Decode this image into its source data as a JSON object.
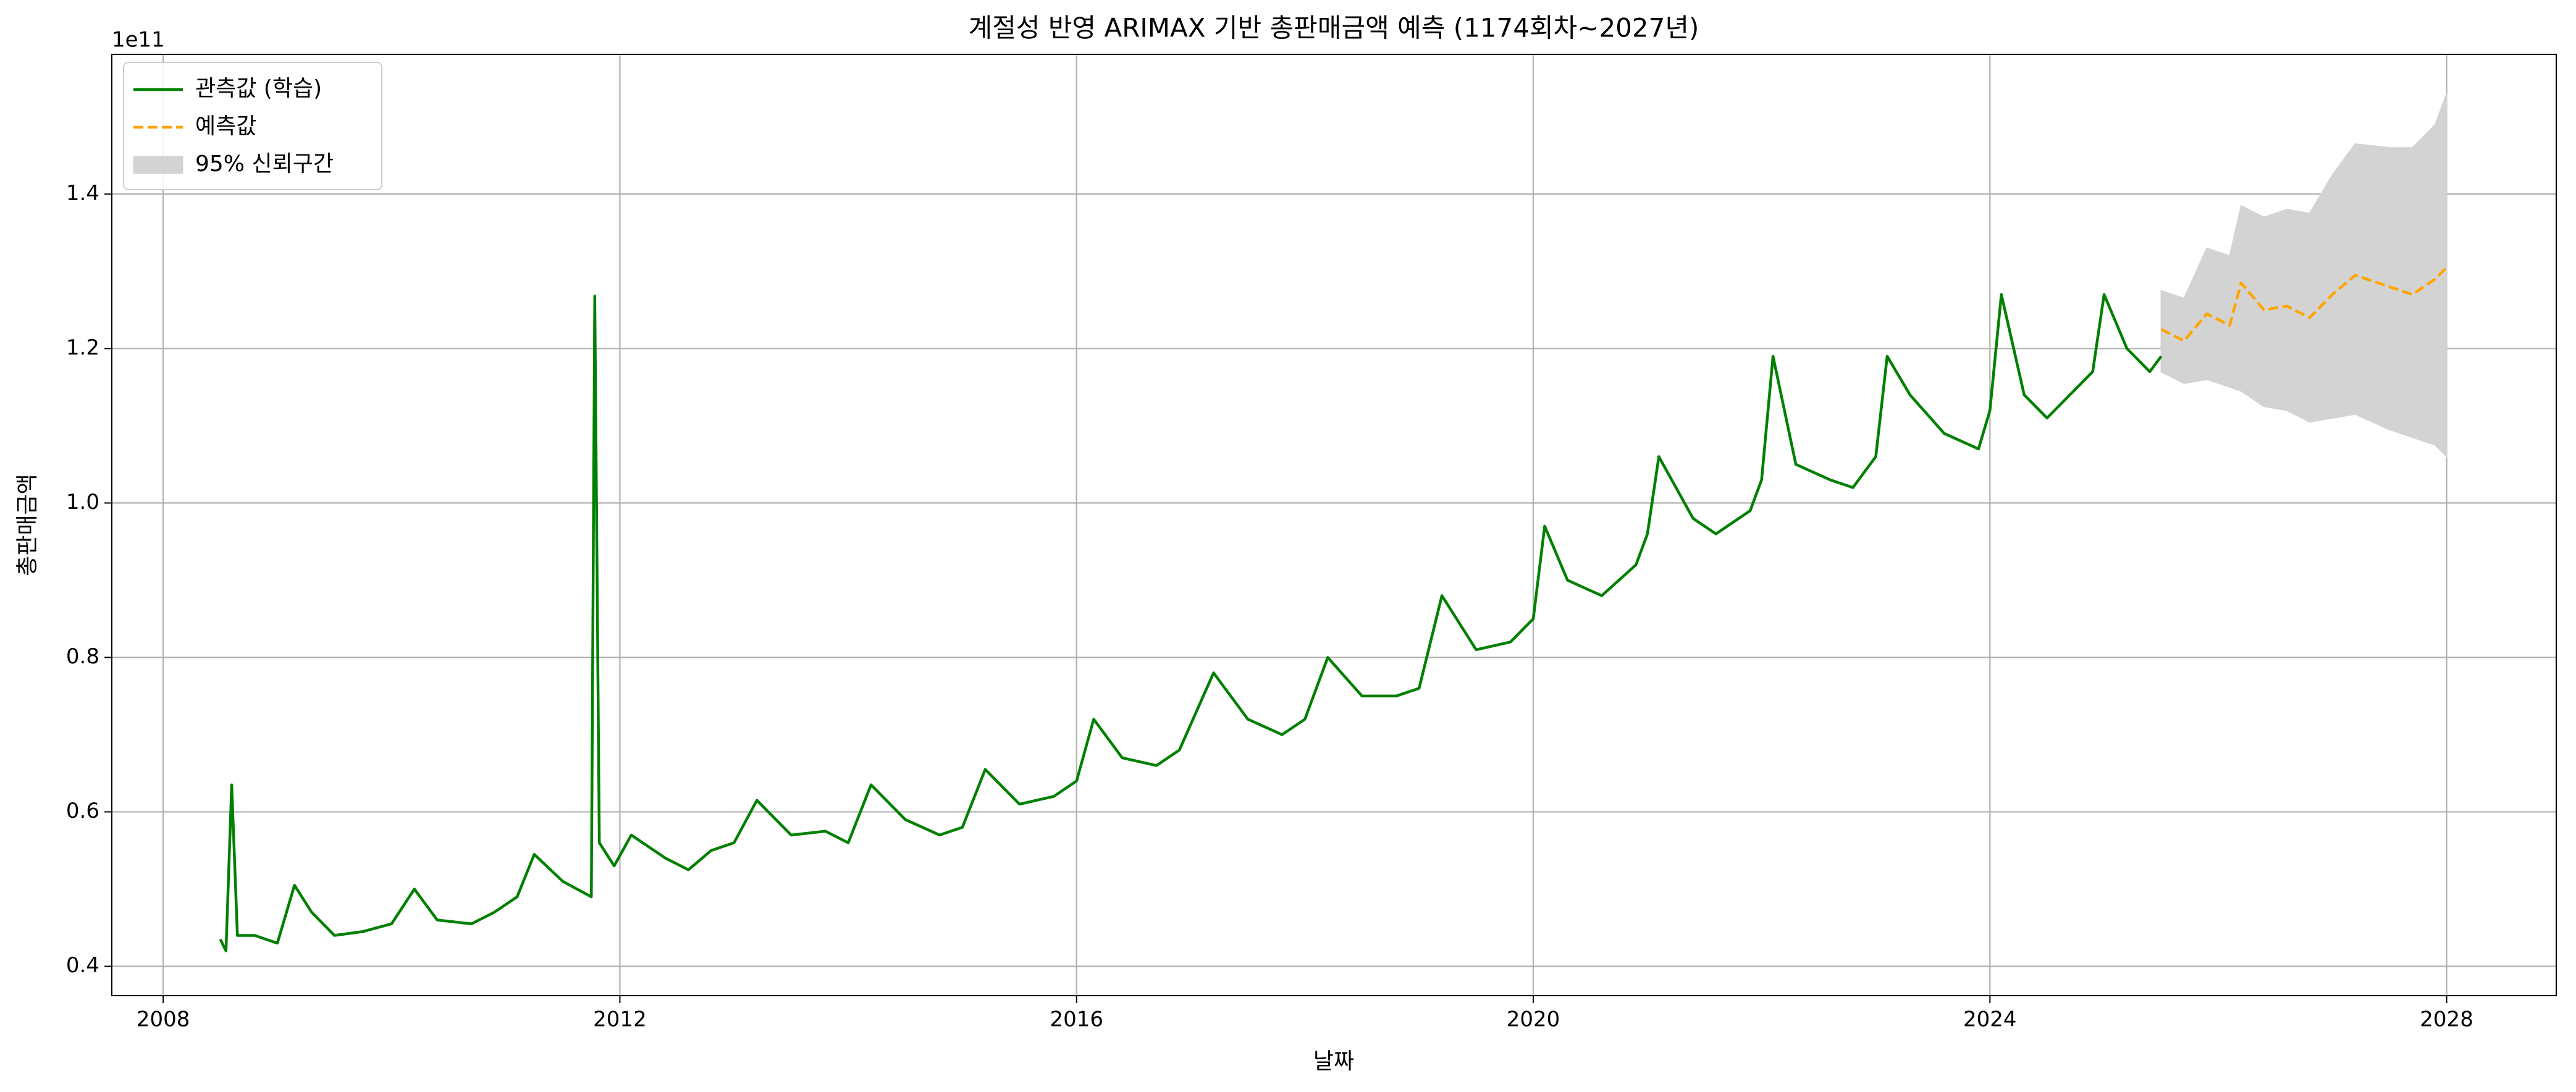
{
  "chart_data": {
    "type": "line",
    "title": "계절성 반영 ARIMAX 기반 총판매금액 예측 (1174회차~2027년)",
    "x_label": "날짜",
    "y_label": "총판매금액",
    "y_offset_label": "1e11",
    "xlim": [
      2007.55,
      2028.96
    ],
    "xticks": [
      2008,
      2012,
      2016,
      2020,
      2024,
      2028
    ],
    "ylim": [
      0.362,
      1.581
    ],
    "yticks": [
      {
        "value": 0.4,
        "label": "0.4"
      },
      {
        "value": 0.6,
        "label": "0.6"
      },
      {
        "value": 0.8,
        "label": "0.8"
      },
      {
        "value": 1.0,
        "label": "1.0"
      },
      {
        "value": 1.2,
        "label": "1.2"
      },
      {
        "value": 1.4,
        "label": "1.4"
      }
    ],
    "grid": true,
    "legend": "upper left",
    "series": [
      {
        "name": "관측값 (학습)",
        "color": "#008000",
        "style": "solid",
        "x": [
          2008.5,
          2008.55,
          2008.6,
          2008.65,
          2008.8,
          2009.0,
          2009.15,
          2009.3,
          2009.5,
          2009.75,
          2010.0,
          2010.2,
          2010.4,
          2010.7,
          2010.9,
          2011.1,
          2011.25,
          2011.5,
          2011.75,
          2011.78,
          2011.82,
          2011.95,
          2012.1,
          2012.4,
          2012.6,
          2012.8,
          2013.0,
          2013.2,
          2013.5,
          2013.8,
          2014.0,
          2014.2,
          2014.5,
          2014.8,
          2015.0,
          2015.2,
          2015.5,
          2015.8,
          2016.0,
          2016.15,
          2016.4,
          2016.7,
          2016.9,
          2017.2,
          2017.5,
          2017.8,
          2018.0,
          2018.2,
          2018.5,
          2018.8,
          2019.0,
          2019.2,
          2019.5,
          2019.8,
          2020.0,
          2020.1,
          2020.3,
          2020.6,
          2020.9,
          2021.0,
          2021.1,
          2021.4,
          2021.6,
          2021.9,
          2022.0,
          2022.1,
          2022.3,
          2022.6,
          2022.8,
          2023.0,
          2023.1,
          2023.3,
          2023.6,
          2023.9,
          2024.0,
          2024.1,
          2024.3,
          2024.5,
          2024.7,
          2024.9,
          2025.0,
          2025.2,
          2025.4,
          2025.5
        ],
        "values": [
          0.435,
          0.42,
          0.635,
          0.44,
          0.44,
          0.43,
          0.505,
          0.47,
          0.44,
          0.445,
          0.455,
          0.5,
          0.46,
          0.455,
          0.47,
          0.49,
          0.545,
          0.51,
          0.49,
          1.268,
          0.56,
          0.53,
          0.57,
          0.54,
          0.525,
          0.55,
          0.56,
          0.615,
          0.57,
          0.575,
          0.56,
          0.635,
          0.59,
          0.57,
          0.58,
          0.655,
          0.61,
          0.62,
          0.64,
          0.72,
          0.67,
          0.66,
          0.68,
          0.78,
          0.72,
          0.7,
          0.72,
          0.8,
          0.75,
          0.75,
          0.76,
          0.88,
          0.81,
          0.82,
          0.85,
          0.97,
          0.9,
          0.88,
          0.92,
          0.96,
          1.06,
          0.98,
          0.96,
          0.99,
          1.03,
          1.19,
          1.05,
          1.03,
          1.02,
          1.06,
          1.19,
          1.14,
          1.09,
          1.07,
          1.12,
          1.27,
          1.14,
          1.11,
          1.14,
          1.17,
          1.27,
          1.2,
          1.17,
          1.19
        ]
      },
      {
        "name": "예측값",
        "color": "#ffa500",
        "style": "dashed",
        "x": [
          2025.5,
          2025.7,
          2025.9,
          2026.1,
          2026.2,
          2026.4,
          2026.6,
          2026.8,
          2027.0,
          2027.2,
          2027.5,
          2027.7,
          2027.9,
          2028.0
        ],
        "values": [
          1.225,
          1.21,
          1.245,
          1.23,
          1.285,
          1.25,
          1.255,
          1.24,
          1.27,
          1.295,
          1.28,
          1.27,
          1.29,
          1.305
        ]
      },
      {
        "name": "95% 신뢰구간",
        "color": "#d3d3d3",
        "style": "band",
        "x": [
          2025.5,
          2025.7,
          2025.9,
          2026.1,
          2026.2,
          2026.4,
          2026.6,
          2026.8,
          2027.0,
          2027.2,
          2027.5,
          2027.7,
          2027.9,
          2028.0
        ],
        "lower": [
          1.17,
          1.155,
          1.16,
          1.15,
          1.145,
          1.125,
          1.12,
          1.105,
          1.11,
          1.115,
          1.095,
          1.085,
          1.075,
          1.06
        ],
        "upper": [
          1.275,
          1.265,
          1.33,
          1.32,
          1.385,
          1.37,
          1.38,
          1.375,
          1.425,
          1.465,
          1.46,
          1.46,
          1.49,
          1.53
        ]
      }
    ]
  }
}
